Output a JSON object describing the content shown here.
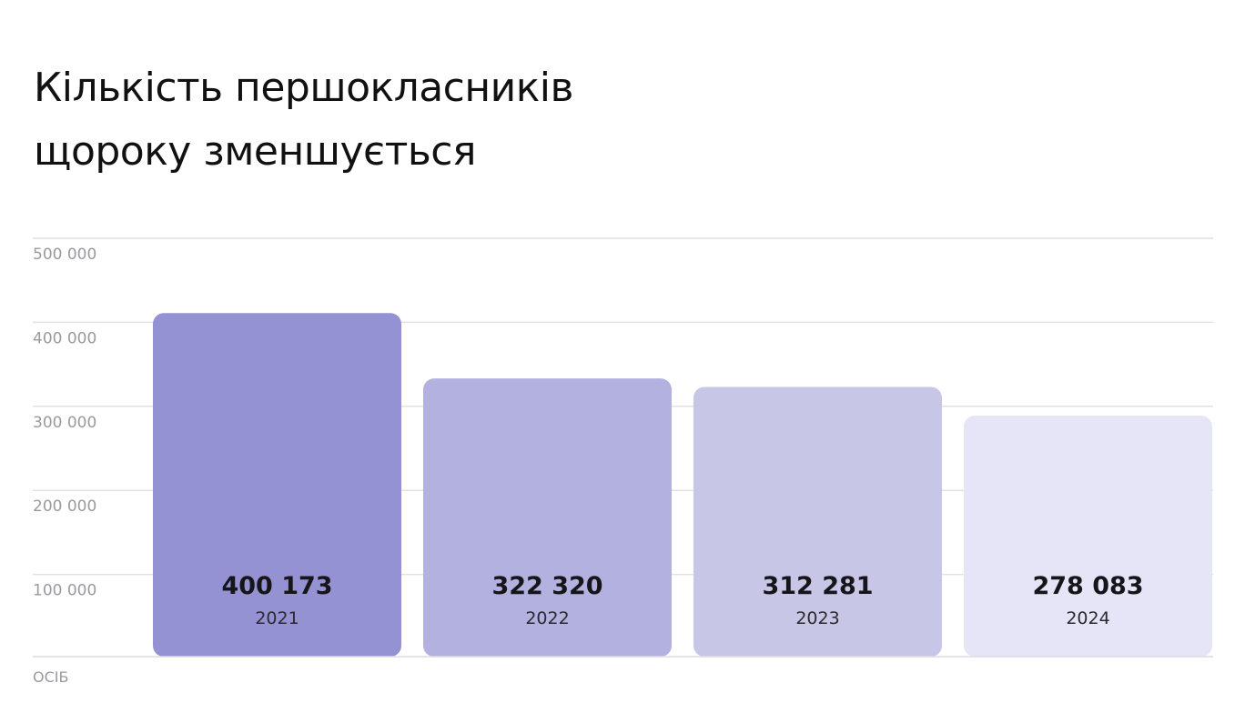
{
  "title_lines": [
    "Кількість першокласників",
    "щороку зменшується"
  ],
  "chart_data": {
    "type": "bar",
    "title": "Кількість першокласників щороку зменшується",
    "categories": [
      "2021",
      "2022",
      "2023",
      "2024"
    ],
    "values": [
      400173,
      322320,
      312281,
      278083
    ],
    "value_labels": [
      "400 173",
      "322 320",
      "312 281",
      "278 083"
    ],
    "y_ticks": [
      {
        "value": 100000,
        "label": "100 000"
      },
      {
        "value": 200000,
        "label": "200 000"
      },
      {
        "value": 300000,
        "label": "300 000"
      },
      {
        "value": 400000,
        "label": "400 000"
      },
      {
        "value": 500000,
        "label": "500 000"
      }
    ],
    "ylim": [
      0,
      500000
    ],
    "ylabel": "ОСІБ",
    "grid": true,
    "bar_colors": [
      "#9592d3",
      "#b3b1df",
      "#c8c6e6",
      "#e6e5f7"
    ]
  }
}
